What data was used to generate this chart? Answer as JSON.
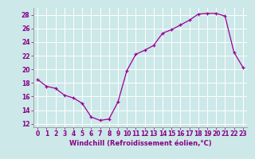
{
  "x": [
    0,
    1,
    2,
    3,
    4,
    5,
    6,
    7,
    8,
    9,
    10,
    11,
    12,
    13,
    14,
    15,
    16,
    17,
    18,
    19,
    20,
    21,
    22,
    23
  ],
  "y": [
    18.5,
    17.5,
    17.2,
    16.2,
    15.8,
    15.0,
    13.0,
    12.5,
    12.7,
    15.2,
    19.8,
    22.2,
    22.8,
    23.5,
    25.3,
    25.8,
    26.5,
    27.2,
    28.1,
    28.2,
    28.2,
    27.8,
    22.5,
    20.3
  ],
  "line_color": "#990099",
  "marker": "+",
  "bg_color": "#cce8e8",
  "grid_color": "#ffffff",
  "xlabel": "Windchill (Refroidissement éolien,°C)",
  "xlim": [
    -0.5,
    23.5
  ],
  "ylim": [
    11.5,
    29.0
  ],
  "xticks": [
    0,
    1,
    2,
    3,
    4,
    5,
    6,
    7,
    8,
    9,
    10,
    11,
    12,
    13,
    14,
    15,
    16,
    17,
    18,
    19,
    20,
    21,
    22,
    23
  ],
  "yticks": [
    12,
    14,
    16,
    18,
    20,
    22,
    24,
    26,
    28
  ],
  "tick_label_fontsize": 5.5,
  "xlabel_fontsize": 6.0,
  "label_color": "#880088",
  "spine_color": "#888888",
  "linewidth": 0.9,
  "markersize": 3.5
}
